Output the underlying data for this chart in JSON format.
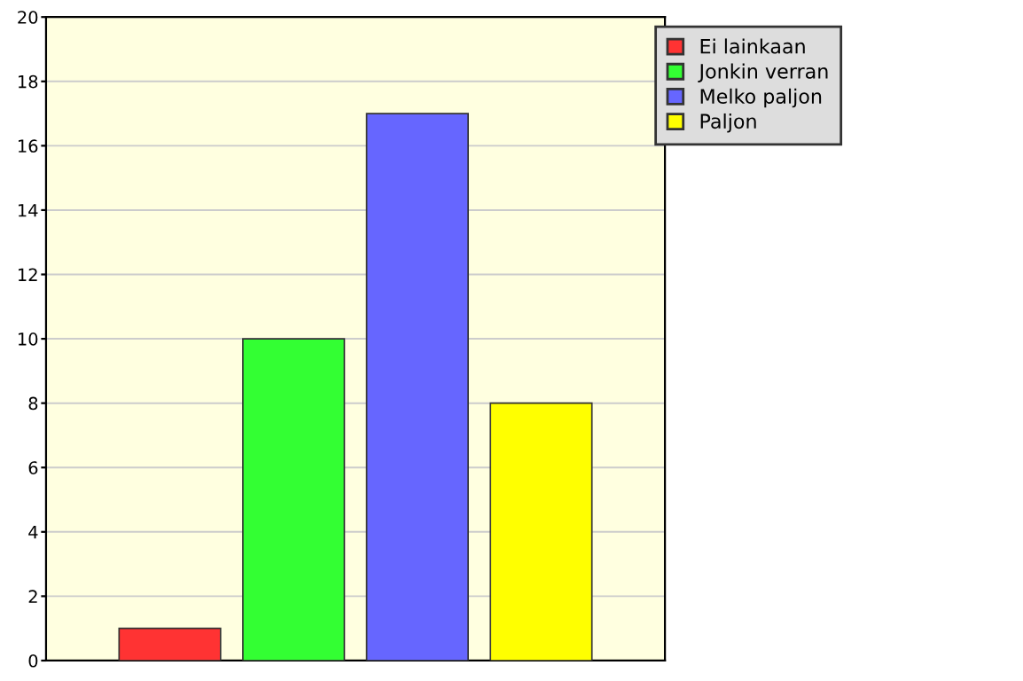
{
  "chart_data": {
    "type": "bar",
    "categories": [
      null
    ],
    "series": [
      {
        "name": "Ei lainkaan",
        "color": "#ff3333",
        "values": [
          1
        ]
      },
      {
        "name": "Jonkin verran",
        "color": "#33ff33",
        "values": [
          10
        ]
      },
      {
        "name": "Melko paljon",
        "color": "#6666ff",
        "values": [
          17
        ]
      },
      {
        "name": "Paljon",
        "color": "#ffff00",
        "values": [
          8
        ]
      }
    ],
    "ylim": [
      0,
      20
    ],
    "yticks": [
      0,
      2,
      4,
      6,
      8,
      10,
      12,
      14,
      16,
      18,
      20
    ],
    "grid": "y",
    "legend": "top right"
  }
}
